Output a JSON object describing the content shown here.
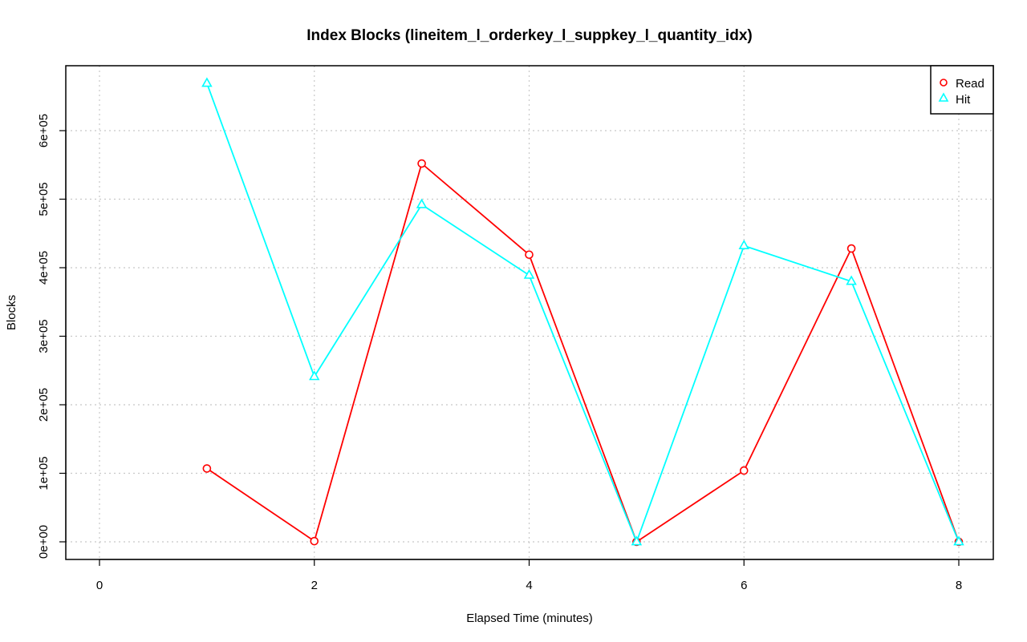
{
  "chart_data": {
    "type": "line",
    "title": "Index Blocks (lineitem_l_orderkey_l_suppkey_l_quantity_idx)",
    "xlabel": "Elapsed Time (minutes)",
    "ylabel": "Blocks",
    "xlim": [
      0,
      8
    ],
    "ylim": [
      0,
      650000
    ],
    "x_ticks": [
      0,
      2,
      4,
      6,
      8
    ],
    "x_tick_labels": [
      "0",
      "2",
      "4",
      "6",
      "8"
    ],
    "y_ticks": [
      0,
      100000,
      200000,
      300000,
      400000,
      500000,
      600000
    ],
    "y_tick_labels": [
      "0e+00",
      "1e+05",
      "2e+05",
      "3e+05",
      "4e+05",
      "5e+05",
      "6e+05"
    ],
    "grid": true,
    "grid_style": "dotted",
    "legend_position": "top-right",
    "x": [
      1,
      2,
      3,
      4,
      5,
      6,
      7,
      8
    ],
    "series": [
      {
        "name": "Read",
        "color": "#ff0000",
        "marker": "circle",
        "values": [
          107000,
          1000,
          552000,
          419000,
          0,
          104000,
          428000,
          0
        ]
      },
      {
        "name": "Hit",
        "color": "#00ffff",
        "marker": "triangle",
        "values": [
          669000,
          241000,
          492000,
          389000,
          0,
          432000,
          380000,
          0
        ]
      }
    ]
  }
}
